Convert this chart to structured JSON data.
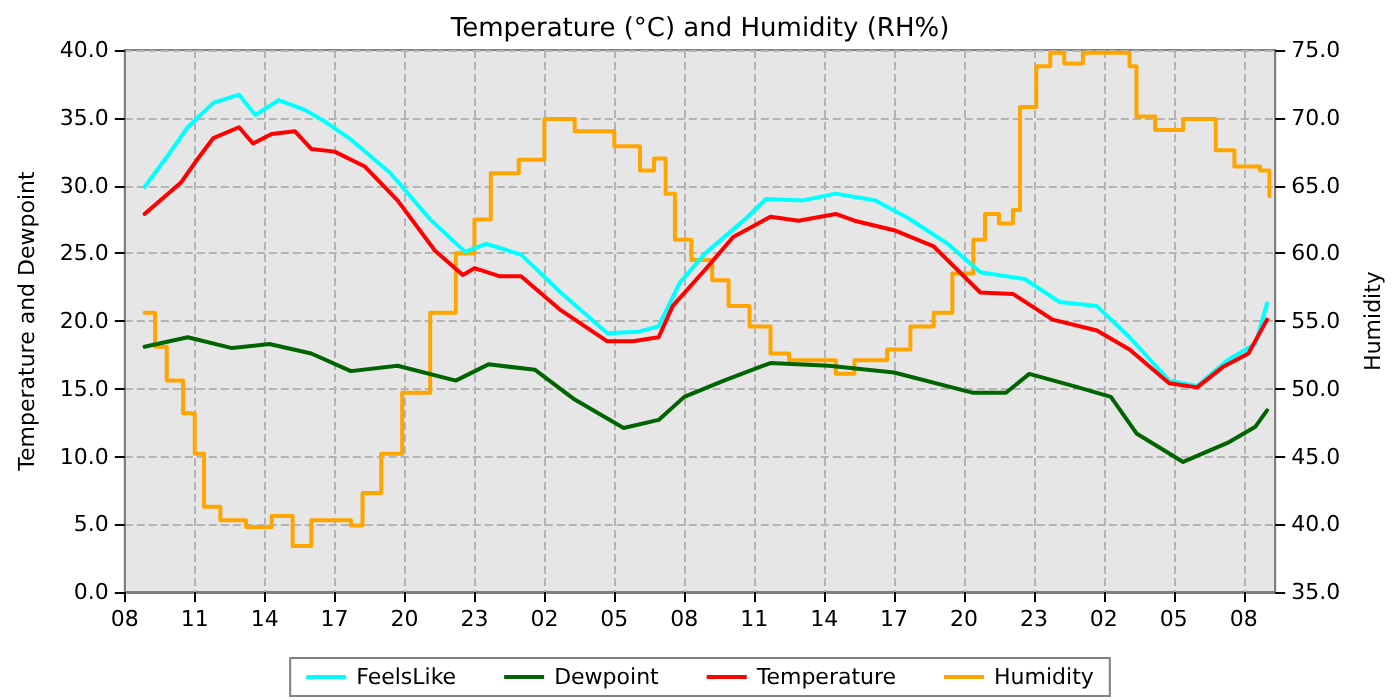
{
  "chart_data": {
    "type": "line",
    "title": "Temperature (°C) and Humidity (RH%)",
    "ylabel": "Temperature and Dewpoint",
    "y2label": "Humidity",
    "xlim": [
      "--01-01T08:00",
      "--01-03T09:21"
    ],
    "xticks": [
      {
        "value": "--01-01T08:00",
        "label": "08"
      },
      {
        "value": "--01-01T11:00",
        "label": "11"
      },
      {
        "value": "--01-01T14:00",
        "label": "14"
      },
      {
        "value": "--01-01T17:00",
        "label": "17"
      },
      {
        "value": "--01-01T20:00",
        "label": "20"
      },
      {
        "value": "--01-01T23:00",
        "label": "23"
      },
      {
        "value": "--01-02T02:00",
        "label": "02"
      },
      {
        "value": "--01-02T05:00",
        "label": "05"
      },
      {
        "value": "--01-02T08:00",
        "label": "08"
      },
      {
        "value": "--01-02T11:00",
        "label": "11"
      },
      {
        "value": "--01-02T14:00",
        "label": "14"
      },
      {
        "value": "--01-02T17:00",
        "label": "17"
      },
      {
        "value": "--01-02T20:00",
        "label": "20"
      },
      {
        "value": "--01-02T23:00",
        "label": "23"
      },
      {
        "value": "--01-03T02:00",
        "label": "02"
      },
      {
        "value": "--01-03T05:00",
        "label": "05"
      },
      {
        "value": "--01-03T08:00",
        "label": "08"
      }
    ],
    "ylim": [
      0,
      40
    ],
    "yticks": [
      {
        "value": 0,
        "label": "0.0"
      },
      {
        "value": 5,
        "label": "5.0"
      },
      {
        "value": 10,
        "label": "10.0"
      },
      {
        "value": 15,
        "label": "15.0"
      },
      {
        "value": 20,
        "label": "20.0"
      },
      {
        "value": 25,
        "label": "25.0"
      },
      {
        "value": 30,
        "label": "30.0"
      },
      {
        "value": 35,
        "label": "35.0"
      },
      {
        "value": 40,
        "label": "40.0"
      }
    ],
    "y2lim": [
      35,
      75
    ],
    "y2ticks": [
      {
        "value": 35,
        "label": "35.0"
      },
      {
        "value": 40,
        "label": "40.0"
      },
      {
        "value": 45,
        "label": "45.0"
      },
      {
        "value": 50,
        "label": "50.0"
      },
      {
        "value": 55,
        "label": "55.0"
      },
      {
        "value": 60,
        "label": "60.0"
      },
      {
        "value": 65,
        "label": "65.0"
      },
      {
        "value": 70,
        "label": "70.0"
      },
      {
        "value": 75,
        "label": "75.0"
      }
    ],
    "grid": true,
    "legend": "bottom",
    "marker": "none",
    "line_style": "solid",
    "series": [
      {
        "name": "FeelsLike",
        "color": "#00ffff",
        "x": [
          "--01-01T08:51",
          "--01-01T09:48",
          "--01-01T10:42",
          "--01-01T11:48",
          "--01-01T12:54",
          "--01-01T13:36",
          "--01-01T14:36",
          "--01-01T15:42",
          "--01-01T16:36",
          "--01-01T17:42",
          "--01-01T19:24",
          "--01-01T21:06",
          "--01-01T22:36",
          "--01-01T23:30",
          "--01-02T01:00",
          "--01-02T02:42",
          "--01-02T04:42",
          "--01-02T06:00",
          "--01-02T06:54",
          "--01-02T07:48",
          "--01-02T08:54",
          "--01-02T10:36",
          "--01-02T11:30",
          "--01-02T13:06",
          "--01-02T14:30",
          "--01-02T16:12",
          "--01-02T17:36",
          "--01-02T19:18",
          "--01-02T20:42",
          "--01-02T22:36",
          "--01-03T00:06",
          "--01-03T01:42",
          "--01-03T03:06",
          "--01-03T04:48",
          "--01-03T06:00",
          "--01-03T07:18",
          "--01-03T08:30",
          "--01-03T09:00"
        ],
        "values": [
          29.9,
          32.1,
          34.3,
          36.1,
          36.7,
          35.2,
          36.3,
          35.6,
          34.7,
          33.4,
          30.9,
          27.5,
          25.1,
          25.7,
          24.9,
          22.1,
          19.1,
          19.2,
          19.6,
          22.8,
          25.0,
          27.5,
          29.0,
          28.9,
          29.4,
          28.9,
          27.6,
          25.7,
          23.6,
          23.1,
          21.4,
          21.1,
          18.8,
          15.6,
          15.2,
          17.1,
          18.3,
          21.3
        ]
      },
      {
        "name": "Dewpoint",
        "color": "#006400",
        "x": [
          "--01-01T08:51",
          "--01-01T10:42",
          "--01-01T12:36",
          "--01-01T14:12",
          "--01-01T16:00",
          "--01-01T17:42",
          "--01-01T19:42",
          "--01-01T22:12",
          "--01-01T23:36",
          "--01-02T01:36",
          "--01-02T03:18",
          "--01-02T05:24",
          "--01-02T06:54",
          "--01-02T08:00",
          "--01-02T09:42",
          "--01-02T11:42",
          "--01-02T14:12",
          "--01-02T17:00",
          "--01-02T20:24",
          "--01-02T21:48",
          "--01-02T22:48",
          "--01-03T00:54",
          "--01-03T02:18",
          "--01-03T03:24",
          "--01-03T05:24",
          "--01-03T07:18",
          "--01-03T08:30",
          "--01-03T09:00"
        ],
        "values": [
          18.1,
          18.8,
          18.0,
          18.3,
          17.6,
          16.3,
          16.7,
          15.6,
          16.8,
          16.4,
          14.2,
          12.1,
          12.7,
          14.4,
          15.6,
          16.9,
          16.7,
          16.2,
          14.7,
          14.7,
          16.1,
          15.1,
          14.4,
          11.7,
          9.6,
          11.0,
          12.2,
          13.4
        ]
      },
      {
        "name": "Temperature",
        "color": "#ff0000",
        "x": [
          "--01-01T08:51",
          "--01-01T10:24",
          "--01-01T11:06",
          "--01-01T11:48",
          "--01-01T12:54",
          "--01-01T13:30",
          "--01-01T14:18",
          "--01-01T15:18",
          "--01-01T16:00",
          "--01-01T17:00",
          "--01-01T18:18",
          "--01-01T19:42",
          "--01-01T21:18",
          "--01-01T22:30",
          "--01-01T23:00",
          "--01-02T00:06",
          "--01-02T01:00",
          "--01-02T02:42",
          "--01-02T04:42",
          "--01-02T05:48",
          "--01-02T06:54",
          "--01-02T07:30",
          "--01-02T08:54",
          "--01-02T10:06",
          "--01-02T11:42",
          "--01-02T12:54",
          "--01-02T14:30",
          "--01-02T15:18",
          "--01-02T17:00",
          "--01-02T18:42",
          "--01-02T20:42",
          "--01-02T22:06",
          "--01-02T23:48",
          "--01-03T01:42",
          "--01-03T03:06",
          "--01-03T04:48",
          "--01-03T06:00",
          "--01-03T07:06",
          "--01-03T08:12",
          "--01-03T09:00"
        ],
        "values": [
          27.9,
          30.2,
          31.9,
          33.5,
          34.3,
          33.1,
          33.8,
          34.0,
          32.7,
          32.5,
          31.4,
          28.9,
          25.2,
          23.4,
          23.9,
          23.3,
          23.3,
          20.8,
          18.5,
          18.5,
          18.8,
          21.1,
          23.8,
          26.2,
          27.7,
          27.4,
          27.9,
          27.4,
          26.7,
          25.5,
          22.1,
          22.0,
          20.1,
          19.3,
          17.9,
          15.4,
          15.1,
          16.6,
          17.6,
          20.1
        ]
      },
      {
        "name": "Humidity",
        "type": "step",
        "axis": "y2",
        "color": "#ffa500",
        "x": [
          "--01-01T08:51",
          "--01-01T09:18",
          "--01-01T09:48",
          "--01-01T10:30",
          "--01-01T11:00",
          "--01-01T11:24",
          "--01-01T12:06",
          "--01-01T13:12",
          "--01-01T14:18",
          "--01-01T15:12",
          "--01-01T16:00",
          "--01-01T17:42",
          "--01-01T18:12",
          "--01-01T19:00",
          "--01-01T19:54",
          "--01-01T21:06",
          "--01-01T22:12",
          "--01-01T23:00",
          "--01-01T23:42",
          "--01-02T00:54",
          "--01-02T02:00",
          "--01-02T03:18",
          "--01-02T05:00",
          "--01-02T06:06",
          "--01-02T06:42",
          "--01-02T07:12",
          "--01-02T07:36",
          "--01-02T08:18",
          "--01-02T09:12",
          "--01-02T09:54",
          "--01-02T10:48",
          "--01-02T11:42",
          "--01-02T12:30",
          "--01-02T13:36",
          "--01-02T14:30",
          "--01-02T15:18",
          "--01-02T16:42",
          "--01-02T17:42",
          "--01-02T18:42",
          "--01-02T19:30",
          "--01-02T20:24",
          "--01-02T20:54",
          "--01-02T21:30",
          "--01-02T22:06",
          "--01-02T22:24",
          "--01-02T23:06",
          "--01-02T23:42",
          "--01-03T00:18",
          "--01-03T01:06",
          "--01-03T02:30",
          "--01-03T03:06",
          "--01-03T03:24",
          "--01-03T04:12",
          "--01-03T05:24",
          "--01-03T06:12",
          "--01-03T06:48",
          "--01-03T07:36",
          "--01-03T08:42",
          "--01-03T09:06"
        ],
        "values": [
          55.6,
          53.1,
          50.6,
          48.2,
          45.2,
          41.3,
          40.3,
          39.8,
          40.6,
          38.4,
          40.3,
          39.9,
          42.3,
          45.2,
          49.7,
          55.6,
          60.0,
          62.5,
          65.9,
          66.9,
          69.9,
          69.0,
          67.9,
          66.1,
          67.0,
          64.4,
          61.0,
          59.5,
          58.0,
          56.1,
          54.6,
          52.6,
          52.1,
          52.1,
          51.1,
          52.1,
          52.9,
          54.6,
          55.6,
          58.5,
          61.0,
          62.9,
          62.2,
          63.2,
          70.8,
          73.8,
          74.8,
          74.0,
          74.8,
          74.8,
          73.8,
          70.1,
          69.1,
          69.9,
          69.9,
          67.6,
          66.4,
          66.1,
          64.2
        ]
      }
    ]
  }
}
